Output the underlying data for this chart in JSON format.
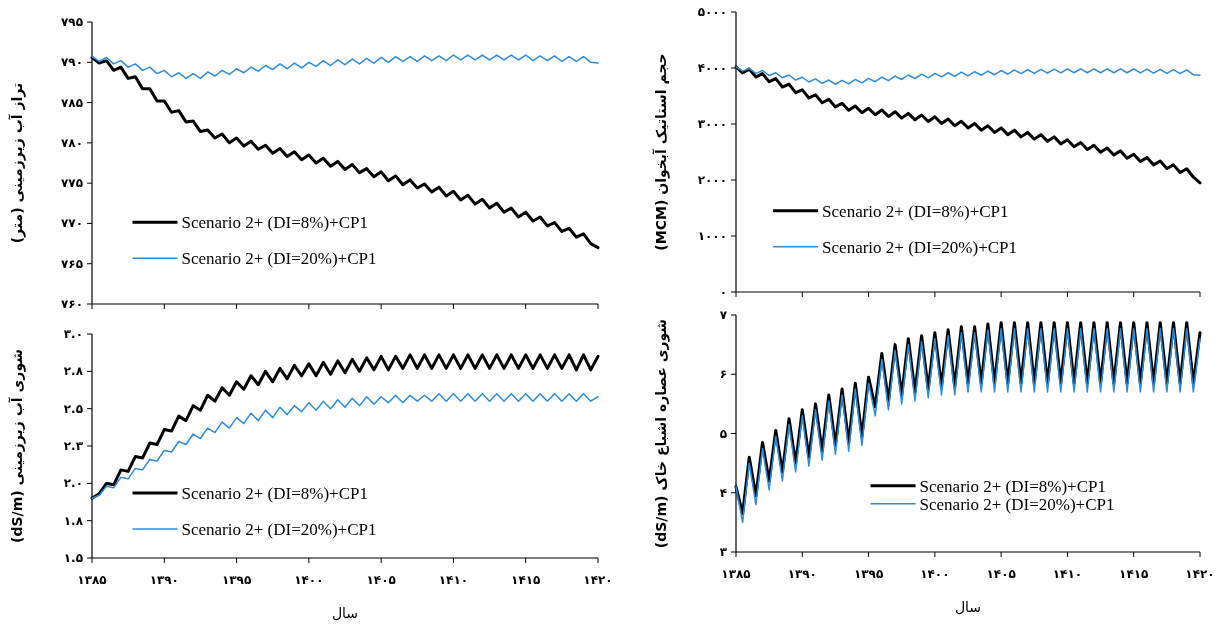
{
  "chart_data": [
    {
      "type": "line",
      "x": [
        1385,
        1385.5,
        1386,
        1386.5,
        1387,
        1387.5,
        1388,
        1388.5,
        1389,
        1389.5,
        1390,
        1390.5,
        1391,
        1391.5,
        1392,
        1392.5,
        1393,
        1393.5,
        1394,
        1394.5,
        1395,
        1395.5,
        1396,
        1396.5,
        1397,
        1397.5,
        1398,
        1398.5,
        1399,
        1399.5,
        1400,
        1400.5,
        1401,
        1401.5,
        1402,
        1402.5,
        1403,
        1403.5,
        1404,
        1404.5,
        1405,
        1405.5,
        1406,
        1406.5,
        1407,
        1407.5,
        1408,
        1408.5,
        1409,
        1409.5,
        1410,
        1410.5,
        1411,
        1411.5,
        1412,
        1412.5,
        1413,
        1413.5,
        1414,
        1414.5,
        1415,
        1415.5,
        1416,
        1416.5,
        1417,
        1417.5,
        1418,
        1418.5,
        1419,
        1419.5,
        1420
      ],
      "ylabel": "تراز آب زیرزمینی (متر)",
      "xlim": [
        1385,
        1420
      ],
      "ylim": [
        760,
        795
      ],
      "xticks": [
        {
          "value": 1385,
          "label": null
        },
        {
          "value": 1390,
          "label": null
        },
        {
          "value": 1395,
          "label": null
        },
        {
          "value": 1400,
          "label": null
        },
        {
          "value": 1405,
          "label": null
        },
        {
          "value": 1410,
          "label": null
        },
        {
          "value": 1415,
          "label": null
        },
        {
          "value": 1420,
          "label": null
        }
      ],
      "yticks": [
        {
          "value": 760,
          "label": "۷۶۰"
        },
        {
          "value": 765,
          "label": "۷۶۵"
        },
        {
          "value": 770,
          "label": "۷۷۰"
        },
        {
          "value": 775,
          "label": "۷۷۵"
        },
        {
          "value": 780,
          "label": "۷۸۰"
        },
        {
          "value": 785,
          "label": "۷۸۵"
        },
        {
          "value": 790,
          "label": "۷۹۰"
        },
        {
          "value": 795,
          "label": "۷۹۵"
        }
      ],
      "tick_labels": "y",
      "legend": "bottom left",
      "series": [
        {
          "name": "Scenario 2+ (DI=8%)+CP1",
          "color": "#000000",
          "values": [
            790.6,
            789.9,
            790.2,
            789.0,
            789.4,
            788.0,
            788.2,
            786.7,
            786.7,
            785.2,
            785.2,
            783.8,
            784.0,
            782.6,
            782.7,
            781.4,
            781.6,
            780.6,
            781.1,
            780.0,
            780.6,
            779.6,
            780.2,
            779.2,
            779.7,
            778.7,
            779.3,
            778.3,
            778.9,
            777.9,
            778.5,
            777.5,
            778.1,
            777.1,
            777.7,
            776.7,
            777.3,
            776.3,
            776.8,
            775.8,
            776.4,
            775.3,
            775.9,
            774.8,
            775.4,
            774.4,
            774.9,
            773.9,
            774.5,
            773.4,
            774.0,
            772.9,
            773.5,
            772.4,
            773.0,
            771.9,
            772.5,
            771.4,
            771.9,
            770.8,
            771.4,
            770.3,
            770.8,
            769.7,
            770.1,
            769.0,
            769.4,
            768.3,
            768.7,
            767.5,
            767.0
          ]
        },
        {
          "name": "Scenario 2+ (DI=20%)+CP1",
          "color": "#2e8bd6",
          "values": [
            790.7,
            790.1,
            790.6,
            789.8,
            790.2,
            789.4,
            789.8,
            789.0,
            789.4,
            788.6,
            789.0,
            788.2,
            788.7,
            788.0,
            788.6,
            788.0,
            788.8,
            788.3,
            789.0,
            788.5,
            789.2,
            788.7,
            789.4,
            788.9,
            789.6,
            789.1,
            789.8,
            789.2,
            789.9,
            789.3,
            790.0,
            789.5,
            790.2,
            789.6,
            790.3,
            789.7,
            790.4,
            789.8,
            790.5,
            789.9,
            790.6,
            790.0,
            790.7,
            790.1,
            790.7,
            790.1,
            790.8,
            790.2,
            790.8,
            790.2,
            790.9,
            790.3,
            790.9,
            790.3,
            790.9,
            790.3,
            790.9,
            790.3,
            790.9,
            790.3,
            790.9,
            790.2,
            790.8,
            790.2,
            790.8,
            790.1,
            790.7,
            790.1,
            790.7,
            790.0,
            789.9
          ]
        }
      ]
    },
    {
      "type": "line",
      "x": [
        1385,
        1385.5,
        1386,
        1386.5,
        1387,
        1387.5,
        1388,
        1388.5,
        1389,
        1389.5,
        1390,
        1390.5,
        1391,
        1391.5,
        1392,
        1392.5,
        1393,
        1393.5,
        1394,
        1394.5,
        1395,
        1395.5,
        1396,
        1396.5,
        1397,
        1397.5,
        1398,
        1398.5,
        1399,
        1399.5,
        1400,
        1400.5,
        1401,
        1401.5,
        1402,
        1402.5,
        1403,
        1403.5,
        1404,
        1404.5,
        1405,
        1405.5,
        1406,
        1406.5,
        1407,
        1407.5,
        1408,
        1408.5,
        1409,
        1409.5,
        1410,
        1410.5,
        1411,
        1411.5,
        1412,
        1412.5,
        1413,
        1413.5,
        1414,
        1414.5,
        1415,
        1415.5,
        1416,
        1416.5,
        1417,
        1417.5,
        1418,
        1418.5,
        1419,
        1419.5,
        1420
      ],
      "ylabel": "حجم استاتیک آبخوان (MCM)",
      "xlim": [
        1385,
        1420
      ],
      "ylim": [
        0,
        5000
      ],
      "xticks": [
        {
          "value": 1385,
          "label": null
        },
        {
          "value": 1390,
          "label": null
        },
        {
          "value": 1395,
          "label": null
        },
        {
          "value": 1400,
          "label": null
        },
        {
          "value": 1405,
          "label": null
        },
        {
          "value": 1410,
          "label": null
        },
        {
          "value": 1415,
          "label": null
        },
        {
          "value": 1420,
          "label": null
        }
      ],
      "yticks": [
        {
          "value": 0,
          "label": "۰"
        },
        {
          "value": 1000,
          "label": "۱۰۰۰"
        },
        {
          "value": 2000,
          "label": "۲۰۰۰"
        },
        {
          "value": 3000,
          "label": "۳۰۰۰"
        },
        {
          "value": 4000,
          "label": "۴۰۰۰"
        },
        {
          "value": 5000,
          "label": "۵۰۰۰"
        }
      ],
      "tick_labels": "y",
      "legend": "bottom left",
      "series": [
        {
          "name": "Scenario 2+ (DI=8%)+CP1",
          "color": "#000000",
          "values": [
            4020,
            3915,
            3980,
            3840,
            3900,
            3755,
            3810,
            3660,
            3710,
            3560,
            3610,
            3465,
            3520,
            3380,
            3440,
            3305,
            3370,
            3245,
            3320,
            3200,
            3280,
            3165,
            3250,
            3135,
            3220,
            3105,
            3190,
            3075,
            3160,
            3045,
            3130,
            3010,
            3090,
            2970,
            3050,
            2930,
            3010,
            2890,
            2970,
            2850,
            2930,
            2810,
            2890,
            2770,
            2850,
            2730,
            2810,
            2690,
            2770,
            2645,
            2720,
            2595,
            2670,
            2545,
            2620,
            2495,
            2570,
            2445,
            2520,
            2390,
            2460,
            2330,
            2400,
            2270,
            2340,
            2205,
            2270,
            2135,
            2200,
            2050,
            1950
          ]
        },
        {
          "name": "Scenario 2+ (DI=20%)+CP1",
          "color": "#2e8bd6",
          "values": [
            4020,
            3945,
            3995,
            3905,
            3955,
            3865,
            3915,
            3825,
            3875,
            3785,
            3835,
            3750,
            3805,
            3725,
            3785,
            3710,
            3780,
            3715,
            3795,
            3735,
            3815,
            3755,
            3835,
            3775,
            3855,
            3795,
            3875,
            3810,
            3890,
            3825,
            3905,
            3840,
            3915,
            3850,
            3925,
            3860,
            3935,
            3870,
            3945,
            3880,
            3955,
            3890,
            3965,
            3898,
            3970,
            3903,
            3975,
            3908,
            3980,
            3913,
            3985,
            3915,
            3985,
            3915,
            3985,
            3915,
            3985,
            3915,
            3985,
            3915,
            3985,
            3913,
            3980,
            3908,
            3975,
            3903,
            3970,
            3898,
            3965,
            3880,
            3870
          ]
        }
      ]
    },
    {
      "type": "line",
      "x": [
        1385,
        1385.5,
        1386,
        1386.5,
        1387,
        1387.5,
        1388,
        1388.5,
        1389,
        1389.5,
        1390,
        1390.5,
        1391,
        1391.5,
        1392,
        1392.5,
        1393,
        1393.5,
        1394,
        1394.5,
        1395,
        1395.5,
        1396,
        1396.5,
        1397,
        1397.5,
        1398,
        1398.5,
        1399,
        1399.5,
        1400,
        1400.5,
        1401,
        1401.5,
        1402,
        1402.5,
        1403,
        1403.5,
        1404,
        1404.5,
        1405,
        1405.5,
        1406,
        1406.5,
        1407,
        1407.5,
        1408,
        1408.5,
        1409,
        1409.5,
        1410,
        1410.5,
        1411,
        1411.5,
        1412,
        1412.5,
        1413,
        1413.5,
        1414,
        1414.5,
        1415,
        1415.5,
        1416,
        1416.5,
        1417,
        1417.5,
        1418,
        1418.5,
        1419,
        1419.5,
        1420
      ],
      "ylabel": "شوری آب زیرزمینی (dS/m)",
      "xlabel": "سال",
      "xlim": [
        1385,
        1420
      ],
      "ylim": [
        1.5,
        3.0
      ],
      "xticks": [
        {
          "value": 1385,
          "label": "۱۳۸۵"
        },
        {
          "value": 1390,
          "label": "۱۳۹۰"
        },
        {
          "value": 1395,
          "label": "۱۳۹۵"
        },
        {
          "value": 1400,
          "label": "۱۴۰۰"
        },
        {
          "value": 1405,
          "label": "۱۴۰۵"
        },
        {
          "value": 1410,
          "label": "۱۴۱۰"
        },
        {
          "value": 1415,
          "label": "۱۴۱۵"
        },
        {
          "value": 1420,
          "label": "۱۴۲۰"
        }
      ],
      "yticks": [
        {
          "value": 1.5,
          "label": "۱.۵"
        },
        {
          "value": 1.75,
          "label": "۱.۸"
        },
        {
          "value": 2.0,
          "label": "۲.۰"
        },
        {
          "value": 2.25,
          "label": "۲.۳"
        },
        {
          "value": 2.5,
          "label": "۲.۵"
        },
        {
          "value": 2.75,
          "label": "۲.۸"
        },
        {
          "value": 3.0,
          "label": "۳.۰"
        }
      ],
      "legend": "bottom left",
      "series": [
        {
          "name": "Scenario 2+ (DI=8%)+CP1",
          "color": "#000000",
          "values": [
            1.9,
            1.93,
            2.0,
            1.99,
            2.09,
            2.08,
            2.18,
            2.17,
            2.27,
            2.26,
            2.36,
            2.35,
            2.45,
            2.42,
            2.52,
            2.49,
            2.59,
            2.55,
            2.64,
            2.59,
            2.68,
            2.63,
            2.72,
            2.66,
            2.75,
            2.68,
            2.77,
            2.7,
            2.79,
            2.72,
            2.8,
            2.72,
            2.81,
            2.73,
            2.82,
            2.74,
            2.83,
            2.75,
            2.84,
            2.76,
            2.85,
            2.76,
            2.85,
            2.77,
            2.86,
            2.77,
            2.86,
            2.77,
            2.86,
            2.77,
            2.86,
            2.77,
            2.86,
            2.77,
            2.86,
            2.77,
            2.86,
            2.77,
            2.86,
            2.77,
            2.86,
            2.77,
            2.86,
            2.77,
            2.86,
            2.77,
            2.86,
            2.76,
            2.86,
            2.76,
            2.85
          ]
        },
        {
          "name": "Scenario 2+ (DI=20%)+CP1",
          "color": "#2e8bd6",
          "values": [
            1.9,
            1.92,
            1.98,
            1.97,
            2.04,
            2.03,
            2.1,
            2.09,
            2.16,
            2.15,
            2.22,
            2.21,
            2.28,
            2.26,
            2.33,
            2.3,
            2.37,
            2.34,
            2.41,
            2.37,
            2.44,
            2.4,
            2.47,
            2.42,
            2.49,
            2.44,
            2.51,
            2.46,
            2.52,
            2.48,
            2.54,
            2.49,
            2.55,
            2.5,
            2.56,
            2.51,
            2.57,
            2.52,
            2.58,
            2.53,
            2.58,
            2.54,
            2.59,
            2.54,
            2.59,
            2.55,
            2.59,
            2.55,
            2.6,
            2.55,
            2.6,
            2.55,
            2.6,
            2.55,
            2.6,
            2.55,
            2.6,
            2.55,
            2.6,
            2.55,
            2.6,
            2.55,
            2.6,
            2.55,
            2.6,
            2.55,
            2.6,
            2.55,
            2.6,
            2.55,
            2.58
          ]
        }
      ]
    },
    {
      "type": "line",
      "x": [
        1385,
        1385.5,
        1386,
        1386.5,
        1387,
        1387.5,
        1388,
        1388.5,
        1389,
        1389.5,
        1390,
        1390.5,
        1391,
        1391.5,
        1392,
        1392.5,
        1393,
        1393.5,
        1394,
        1394.5,
        1395,
        1395.5,
        1396,
        1396.5,
        1397,
        1397.5,
        1398,
        1398.5,
        1399,
        1399.5,
        1400,
        1400.5,
        1401,
        1401.5,
        1402,
        1402.5,
        1403,
        1403.5,
        1404,
        1404.5,
        1405,
        1405.5,
        1406,
        1406.5,
        1407,
        1407.5,
        1408,
        1408.5,
        1409,
        1409.5,
        1410,
        1410.5,
        1411,
        1411.5,
        1412,
        1412.5,
        1413,
        1413.5,
        1414,
        1414.5,
        1415,
        1415.5,
        1416,
        1416.5,
        1417,
        1417.5,
        1418,
        1418.5,
        1419,
        1419.5,
        1420
      ],
      "ylabel": "شوری عصاره اشباع خاک (dS/m)",
      "xlabel": "سال",
      "xlim": [
        1385,
        1420
      ],
      "ylim": [
        3,
        7
      ],
      "xticks": [
        {
          "value": 1385,
          "label": "۱۳۸۵"
        },
        {
          "value": 1390,
          "label": "۱۳۹۰"
        },
        {
          "value": 1395,
          "label": "۱۳۹۵"
        },
        {
          "value": 1400,
          "label": "۱۴۰۰"
        },
        {
          "value": 1405,
          "label": "۱۴۰۵"
        },
        {
          "value": 1410,
          "label": "۱۴۱۰"
        },
        {
          "value": 1415,
          "label": "۱۴۱۵"
        },
        {
          "value": 1420,
          "label": "۱۴۲۰"
        }
      ],
      "yticks": [
        {
          "value": 3,
          "label": "۳"
        },
        {
          "value": 4,
          "label": "۴"
        },
        {
          "value": 5,
          "label": "۵"
        },
        {
          "value": 6,
          "label": "۶"
        },
        {
          "value": 7,
          "label": "۷"
        }
      ],
      "legend": "bottom right",
      "series": [
        {
          "name": "Scenario 2+ (DI=8%)+CP1",
          "color": "#000000",
          "values": [
            4.1,
            3.65,
            4.6,
            3.95,
            4.85,
            4.2,
            5.05,
            4.35,
            5.25,
            4.5,
            5.4,
            4.6,
            5.5,
            4.7,
            5.65,
            4.8,
            5.75,
            4.85,
            5.85,
            4.95,
            5.95,
            5.45,
            6.35,
            5.55,
            6.5,
            5.65,
            6.6,
            5.7,
            6.65,
            5.75,
            6.7,
            5.8,
            6.75,
            5.8,
            6.8,
            5.85,
            6.8,
            5.85,
            6.85,
            5.85,
            6.87,
            5.85,
            6.87,
            5.85,
            6.87,
            5.85,
            6.87,
            5.85,
            6.87,
            5.85,
            6.87,
            5.85,
            6.87,
            5.85,
            6.87,
            5.85,
            6.87,
            5.85,
            6.87,
            5.85,
            6.87,
            5.85,
            6.87,
            5.85,
            6.87,
            5.85,
            6.87,
            5.85,
            6.87,
            5.85,
            6.7
          ]
        },
        {
          "name": "Scenario 2+ (DI=20%)+CP1",
          "color": "#2e8bd6",
          "values": [
            4.1,
            3.5,
            4.5,
            3.8,
            4.75,
            4.05,
            4.95,
            4.2,
            5.15,
            4.35,
            5.3,
            4.45,
            5.4,
            4.55,
            5.55,
            4.65,
            5.65,
            4.7,
            5.75,
            4.8,
            5.85,
            5.3,
            6.25,
            5.4,
            6.4,
            5.5,
            6.5,
            5.55,
            6.55,
            5.6,
            6.6,
            5.65,
            6.65,
            5.65,
            6.7,
            5.7,
            6.7,
            5.7,
            6.75,
            5.7,
            6.77,
            5.7,
            6.77,
            5.7,
            6.77,
            5.7,
            6.77,
            5.7,
            6.77,
            5.7,
            6.77,
            5.7,
            6.77,
            5.7,
            6.77,
            5.7,
            6.77,
            5.7,
            6.77,
            5.7,
            6.77,
            5.7,
            6.77,
            5.7,
            6.77,
            5.7,
            6.77,
            5.7,
            6.77,
            5.7,
            6.6
          ]
        }
      ]
    }
  ]
}
